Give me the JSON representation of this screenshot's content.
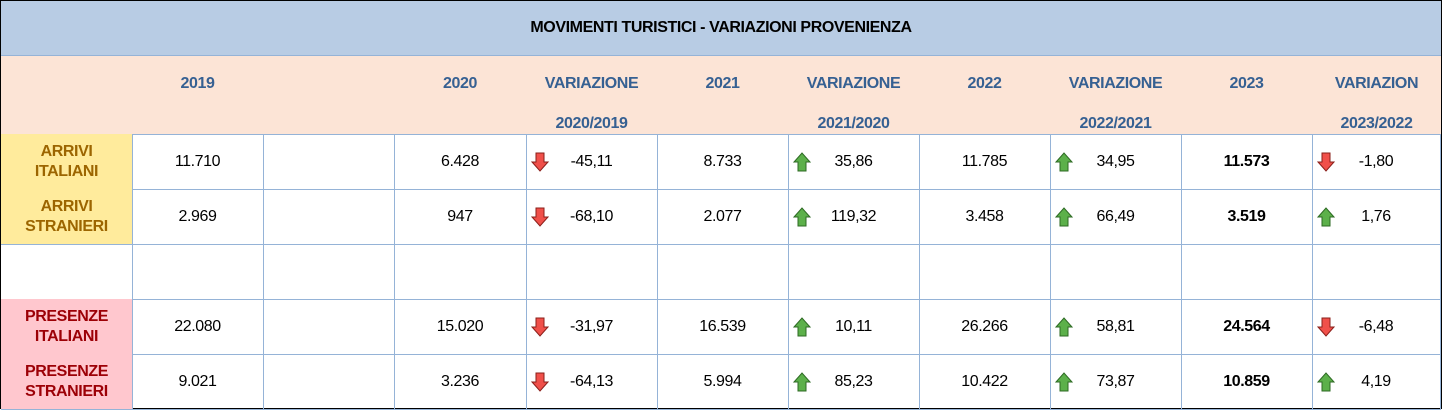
{
  "header": {
    "title": "MOVIMENTI TURISTICI - VARIAZIONI PROVENIENZA",
    "columns": [
      {
        "label": "2019"
      },
      {
        "label": "2020"
      },
      {
        "label": "VARIAZIONE",
        "sub": "2020/2019"
      },
      {
        "label": "2021"
      },
      {
        "label": "VARIAZIONE",
        "sub": "2021/2020"
      },
      {
        "label": "2022"
      },
      {
        "label": "VARIAZIONE",
        "sub": "2022/2021"
      },
      {
        "label": "2023"
      },
      {
        "label": "VARIAZION",
        "sub": "2023/2022"
      }
    ]
  },
  "rows": [
    {
      "label": "ARRIVI ITALIANI",
      "values": [
        "11.710",
        "6.428",
        "-45,11",
        "8.733",
        "35,86",
        "11.785",
        "34,95",
        "11.573",
        "-1,80"
      ]
    },
    {
      "label": "ARRIVI STRANIERI",
      "values": [
        "2.969",
        "947",
        "-68,10",
        "2.077",
        "119,32",
        "3.458",
        "66,49",
        "3.519",
        "1,76"
      ]
    },
    {
      "label": "PRESENZE ITALIANI",
      "values": [
        "22.080",
        "15.020",
        "-31,97",
        "16.539",
        "10,11",
        "26.266",
        "58,81",
        "24.564",
        "-6,48"
      ]
    },
    {
      "label": "PRESENZE STRANIERI",
      "values": [
        "9.021",
        "3.236",
        "-64,13",
        "5.994",
        "85,23",
        "10.422",
        "73,87",
        "10.859",
        "4,19"
      ]
    }
  ]
}
